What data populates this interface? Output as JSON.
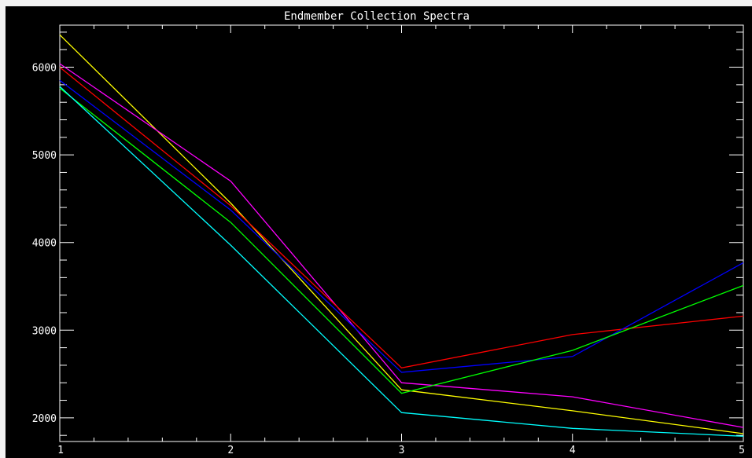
{
  "chart_data": {
    "type": "line",
    "title": "Endmember Collection Spectra",
    "xlabel": "",
    "ylabel": "",
    "x": [
      1,
      2,
      3,
      4,
      5
    ],
    "xlim": [
      1,
      5
    ],
    "ylim": [
      1730,
      6480
    ],
    "x_ticks": [
      "1",
      "2",
      "3",
      "4",
      "5"
    ],
    "y_ticks": [
      "2000",
      "3000",
      "4000",
      "5000",
      "6000"
    ],
    "y_tick_values": [
      2000,
      3000,
      4000,
      5000,
      6000
    ],
    "grid": false,
    "background": "#000000",
    "axis_color": "#ffffff",
    "series": [
      {
        "color": "#ffff00",
        "values": [
          6370,
          4450,
          2320,
          2080,
          1820
        ]
      },
      {
        "color": "#ff00ff",
        "values": [
          6040,
          4700,
          2400,
          2240,
          1890
        ]
      },
      {
        "color": "#ff0000",
        "values": [
          6000,
          4420,
          2570,
          2950,
          3160
        ]
      },
      {
        "color": "#0000ff",
        "values": [
          5850,
          4370,
          2520,
          2700,
          3770
        ]
      },
      {
        "color": "#00ff00",
        "values": [
          5760,
          4230,
          2280,
          2770,
          3510
        ]
      },
      {
        "color": "#00ffff",
        "values": [
          5780,
          3970,
          2060,
          1880,
          1790
        ]
      }
    ]
  }
}
